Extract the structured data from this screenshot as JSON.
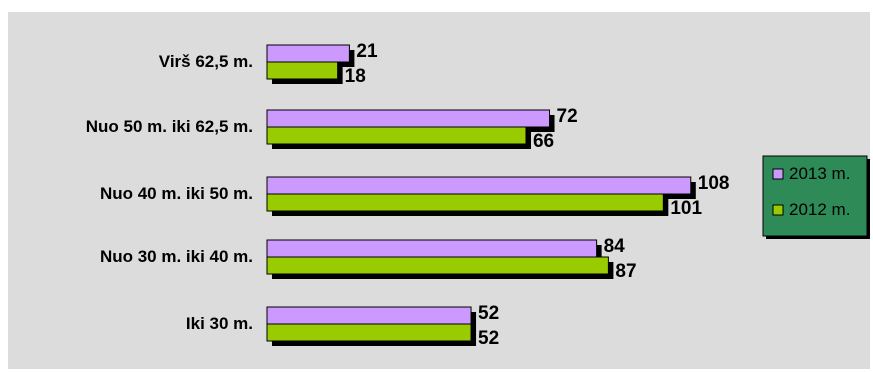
{
  "chart_data": {
    "type": "bar",
    "orientation": "horizontal",
    "categories": [
      "Virš 62,5 m.",
      "Nuo 50 m. iki 62,5 m.",
      "Nuo 40 m. iki 50 m.",
      "Nuo 30 m. iki 40 m.",
      "Iki 30 m."
    ],
    "series": [
      {
        "name": "2013 m.",
        "values": [
          21,
          72,
          108,
          84,
          52
        ],
        "color": "#cc99ff"
      },
      {
        "name": "2012 m.",
        "values": [
          18,
          66,
          101,
          87,
          52
        ],
        "color": "#99cc00"
      }
    ],
    "legend_position": "right",
    "legend_background": "#2e8b57",
    "plot_background": "#dcdcdc",
    "grid": false,
    "axis_visible": false,
    "data_labels": true
  }
}
